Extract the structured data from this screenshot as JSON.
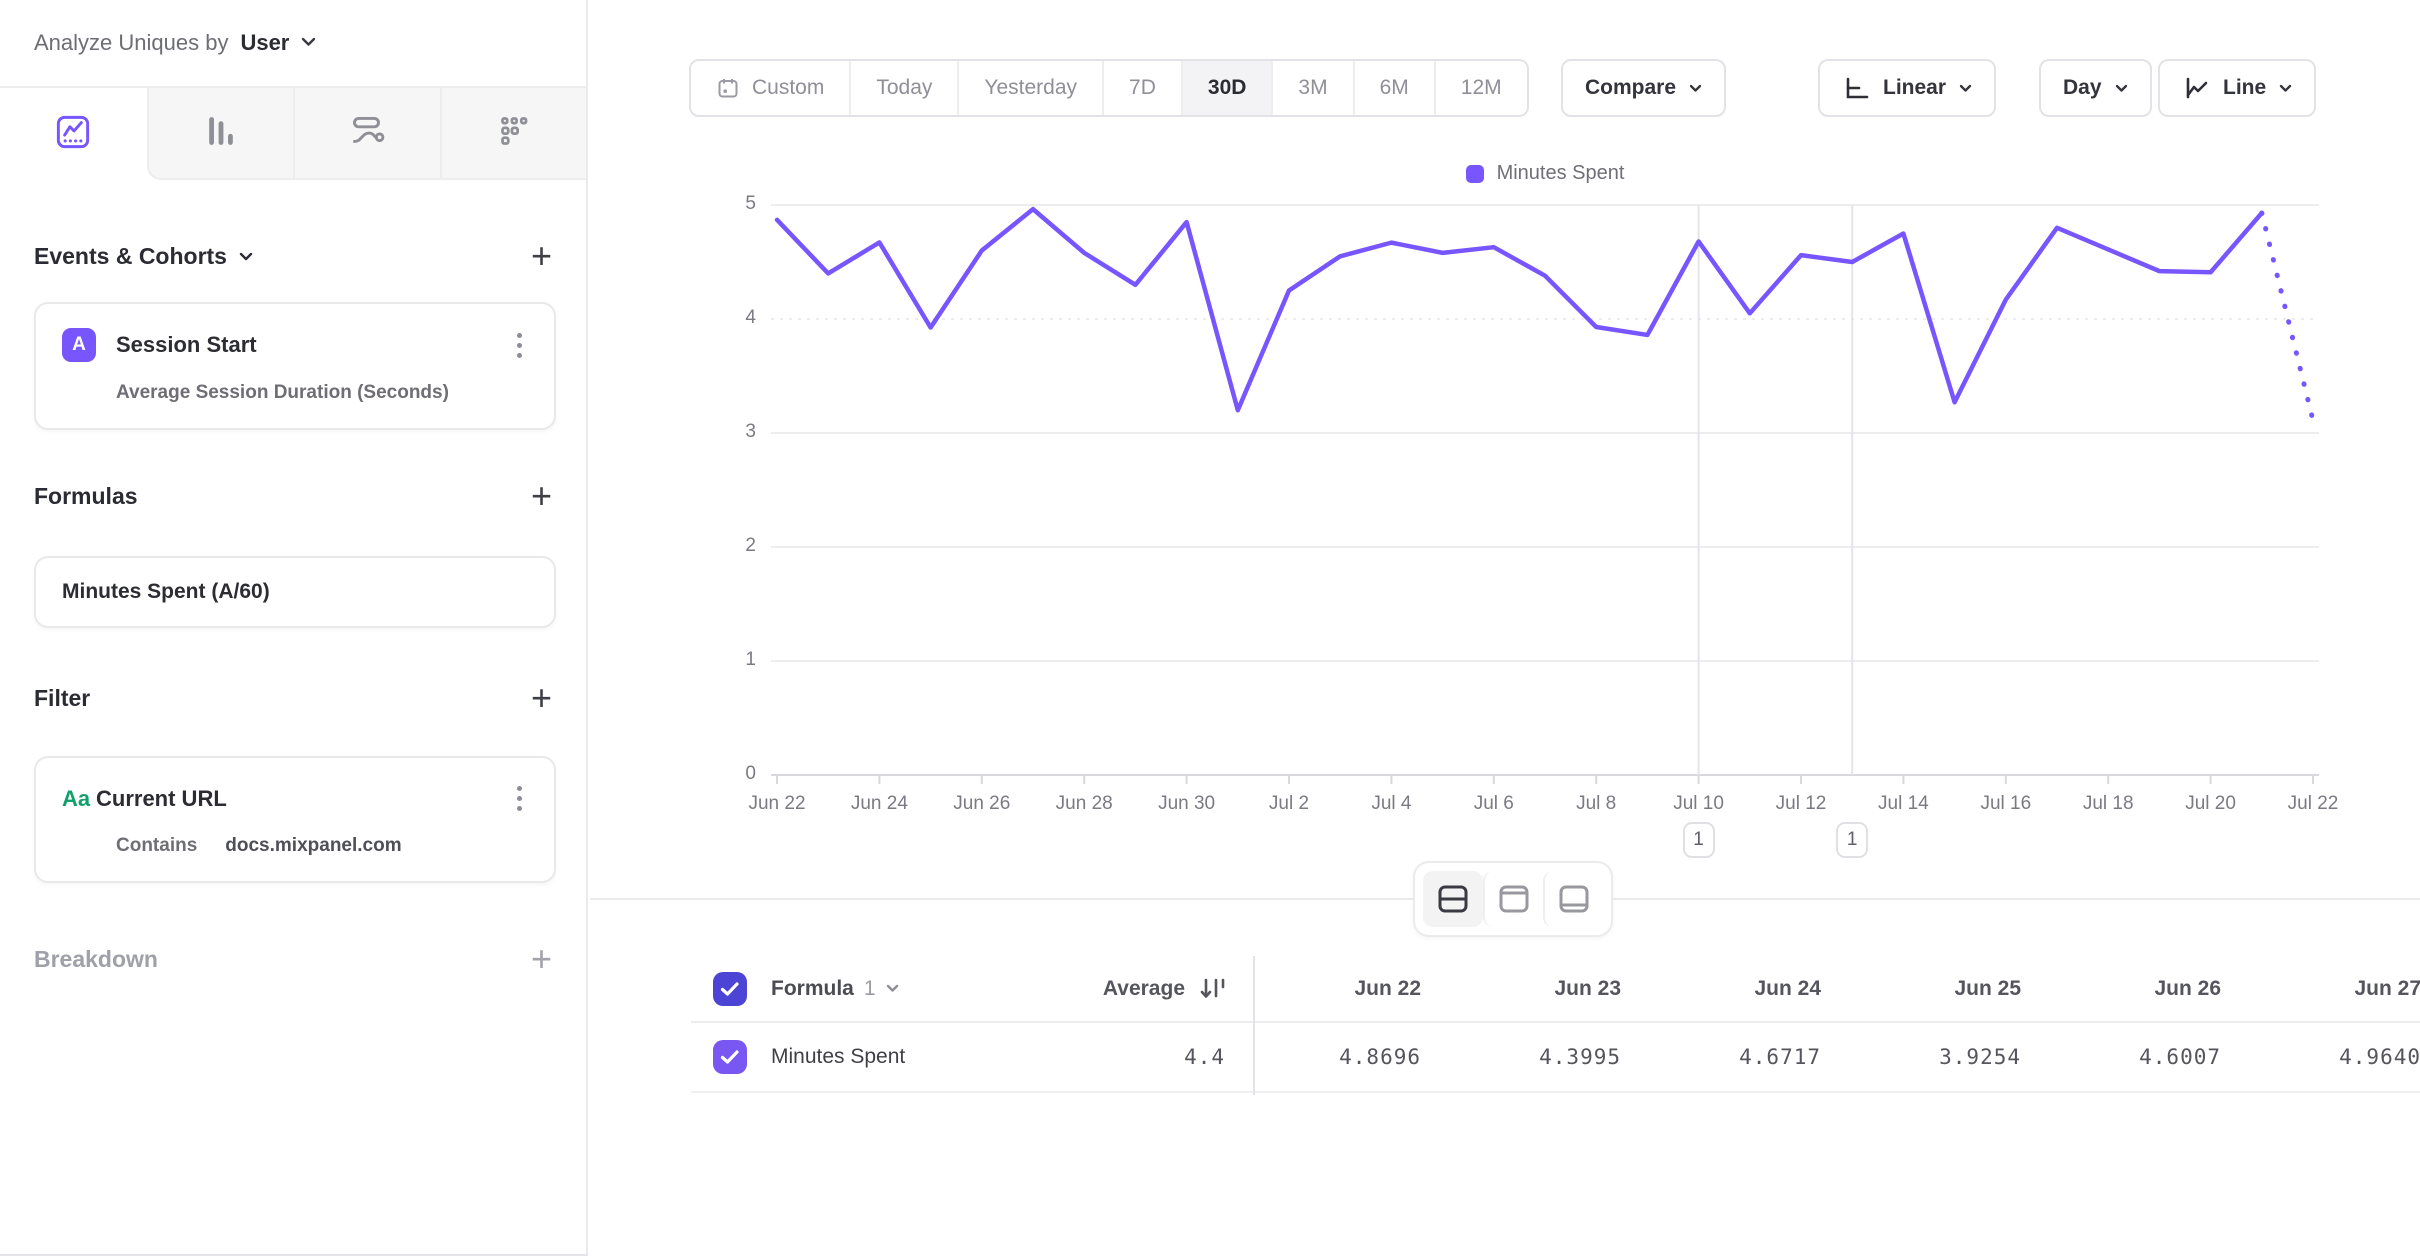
{
  "sidebar": {
    "analyze_by_label": "Analyze Uniques by",
    "analyze_by_value": "User",
    "tabs": [
      {
        "icon": "insights-line-chart",
        "selected": true
      },
      {
        "icon": "bar-chart",
        "selected": false
      },
      {
        "icon": "flows",
        "selected": false
      },
      {
        "icon": "retention-grid",
        "selected": false
      }
    ],
    "events_section": {
      "title": "Events & Cohorts",
      "add_label": "+",
      "card": {
        "badge": "A",
        "title": "Session Start",
        "subtitle": "Average Session Duration (Seconds)"
      }
    },
    "formulas_section": {
      "title": "Formulas",
      "add_label": "+",
      "card": {
        "title": "Minutes Spent (A/60)"
      }
    },
    "filter_section": {
      "title": "Filter",
      "add_label": "+",
      "card": {
        "type_icon": "Aa",
        "title": "Current URL",
        "operator": "Contains",
        "value": "docs.mixpanel.com"
      }
    },
    "breakdown_section": {
      "title": "Breakdown",
      "add_label": "+"
    }
  },
  "toolbar": {
    "date_ranges": [
      "Custom",
      "Today",
      "Yesterday",
      "7D",
      "30D",
      "3M",
      "6M",
      "12M"
    ],
    "selected_range": "30D",
    "compare_label": "Compare",
    "scale_label": "Linear",
    "granularity_label": "Day",
    "chart_type_label": "Line"
  },
  "chart_data": {
    "type": "line",
    "legend": [
      {
        "label": "Minutes Spent",
        "color": "#7856FF"
      }
    ],
    "x": [
      "Jun 22",
      "Jun 23",
      "Jun 24",
      "Jun 25",
      "Jun 26",
      "Jun 27",
      "Jun 28",
      "Jun 29",
      "Jun 30",
      "Jul 1",
      "Jul 2",
      "Jul 3",
      "Jul 4",
      "Jul 5",
      "Jul 6",
      "Jul 7",
      "Jul 8",
      "Jul 9",
      "Jul 10",
      "Jul 11",
      "Jul 12",
      "Jul 13",
      "Jul 14",
      "Jul 15",
      "Jul 16",
      "Jul 17",
      "Jul 18",
      "Jul 19",
      "Jul 20",
      "Jul 21",
      "Jul 22"
    ],
    "series": [
      {
        "name": "Minutes Spent",
        "values": [
          4.8696,
          4.3995,
          4.6717,
          3.9254,
          4.6007,
          4.964,
          4.58,
          4.3,
          4.85,
          3.2,
          4.25,
          4.55,
          4.67,
          4.58,
          4.63,
          4.38,
          3.93,
          3.86,
          4.68,
          4.05,
          4.56,
          4.5,
          4.75,
          3.27,
          4.17,
          4.8,
          4.61,
          4.42,
          4.41,
          4.93,
          3.11
        ]
      }
    ],
    "last_segment_dotted": true,
    "ylim": [
      0,
      5
    ],
    "yticks": [
      0,
      1,
      2,
      3,
      4,
      5
    ],
    "x_tick_interval": 2,
    "grid": true,
    "legend_position": "top-center",
    "annotations": [
      {
        "label": "1",
        "date": "Jul 10",
        "day_index": 18
      },
      {
        "label": "1",
        "date": "Jul 13",
        "day_index": 21
      }
    ]
  },
  "layout_toggle": {
    "options": [
      "split-view",
      "chart-only",
      "table-only"
    ],
    "selected": "split-view"
  },
  "table": {
    "group_label": "Formula",
    "group_number": "1",
    "average_label": "Average",
    "columns": [
      "Jun 22",
      "Jun 23",
      "Jun 24",
      "Jun 25",
      "Jun 26",
      "Jun 27"
    ],
    "rows": [
      {
        "label": "Minutes Spent",
        "average": "4.4",
        "values": [
          "4.8696",
          "4.3995",
          "4.6717",
          "3.9254",
          "4.6007",
          "4.9640"
        ],
        "checked": true
      }
    ]
  },
  "colors": {
    "accent_purple": "#7856FF",
    "header_checkbox": "#4B44D4",
    "row_checkbox": "#7857F2",
    "string_type_green": "#11A06B",
    "gridline": "#ededf0",
    "axis_line": "#d8d8dd"
  }
}
